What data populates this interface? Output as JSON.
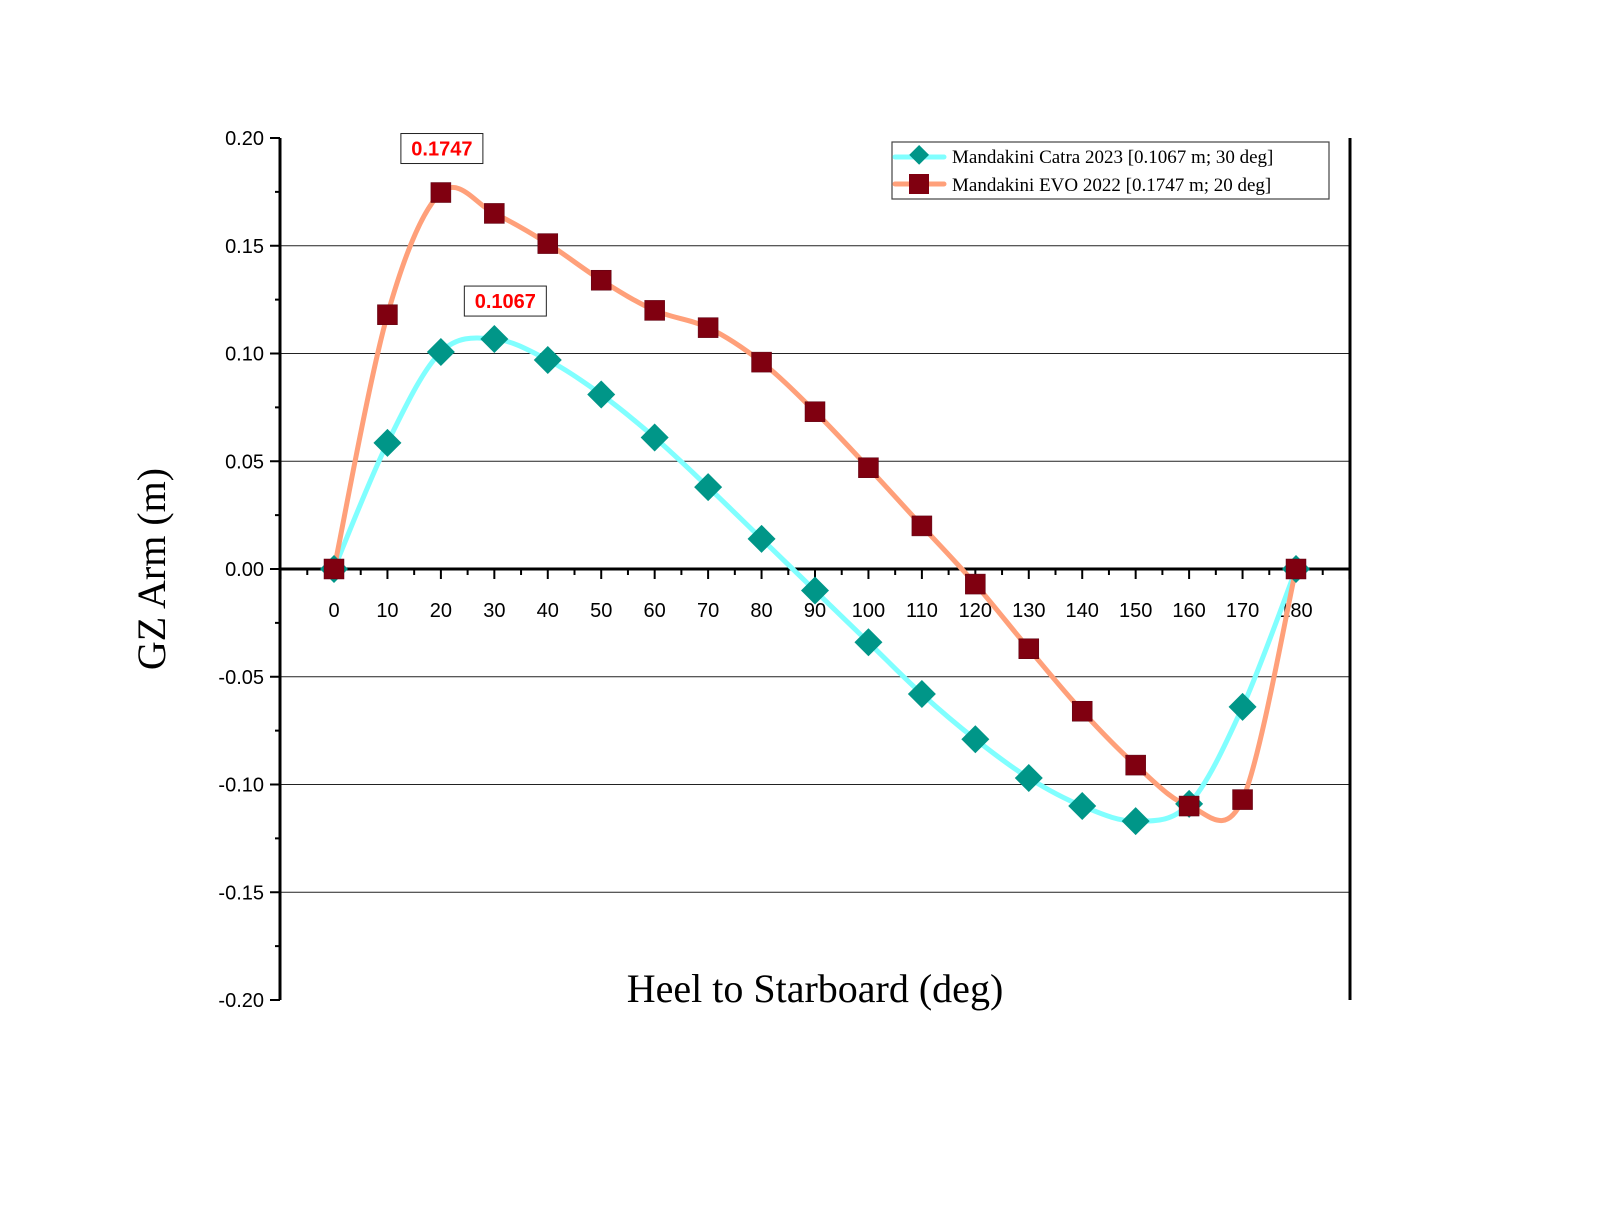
{
  "chart_data": {
    "type": "line",
    "title": "",
    "xlabel": "Heel to Starboard (deg)",
    "ylabel": "GZ Arm (m)",
    "xlim": [
      -10,
      190
    ],
    "ylim": [
      -0.2,
      0.2
    ],
    "x_ticks": [
      0,
      10,
      20,
      30,
      40,
      50,
      60,
      70,
      80,
      90,
      100,
      110,
      120,
      130,
      140,
      150,
      160,
      170,
      180
    ],
    "y_ticks": [
      -0.2,
      -0.15,
      -0.1,
      -0.05,
      0.0,
      0.05,
      0.1,
      0.15,
      0.2
    ],
    "y_tick_labels": [
      "-0.20",
      "-0.15",
      "-0.10",
      "-0.05",
      "0.00",
      "0.05",
      "0.10",
      "0.15",
      "0.20"
    ],
    "grid": "horizontal",
    "legend_position": "top-right",
    "x": [
      0,
      10,
      20,
      30,
      40,
      50,
      60,
      70,
      80,
      90,
      100,
      110,
      120,
      130,
      140,
      150,
      160,
      170,
      180
    ],
    "series": [
      {
        "name": "Mandakini Catra 2023 [0.1067 m; 30 deg]",
        "line_color": "#80ffff",
        "marker_color": "#009688",
        "marker": "diamond",
        "values": [
          0,
          0.0585,
          0.1007,
          0.1067,
          0.097,
          0.081,
          0.061,
          0.038,
          0.014,
          -0.01,
          -0.034,
          -0.058,
          -0.079,
          -0.097,
          -0.11,
          -0.117,
          -0.109,
          -0.064,
          0
        ]
      },
      {
        "name": "Mandakini EVO 2022 [0.1747 m; 20 deg]",
        "line_color": "#ffa07a",
        "marker_color": "#800010",
        "marker": "square",
        "values": [
          0,
          0.118,
          0.1747,
          0.165,
          0.151,
          0.134,
          0.12,
          0.112,
          0.096,
          0.073,
          0.047,
          0.02,
          -0.007,
          -0.037,
          -0.066,
          -0.091,
          -0.11,
          -0.107,
          0
        ]
      }
    ],
    "annotations": [
      {
        "text": "0.1747",
        "x": 20,
        "y": 0.1747
      },
      {
        "text": "0.1067",
        "x": 30,
        "y": 0.1067
      }
    ]
  }
}
